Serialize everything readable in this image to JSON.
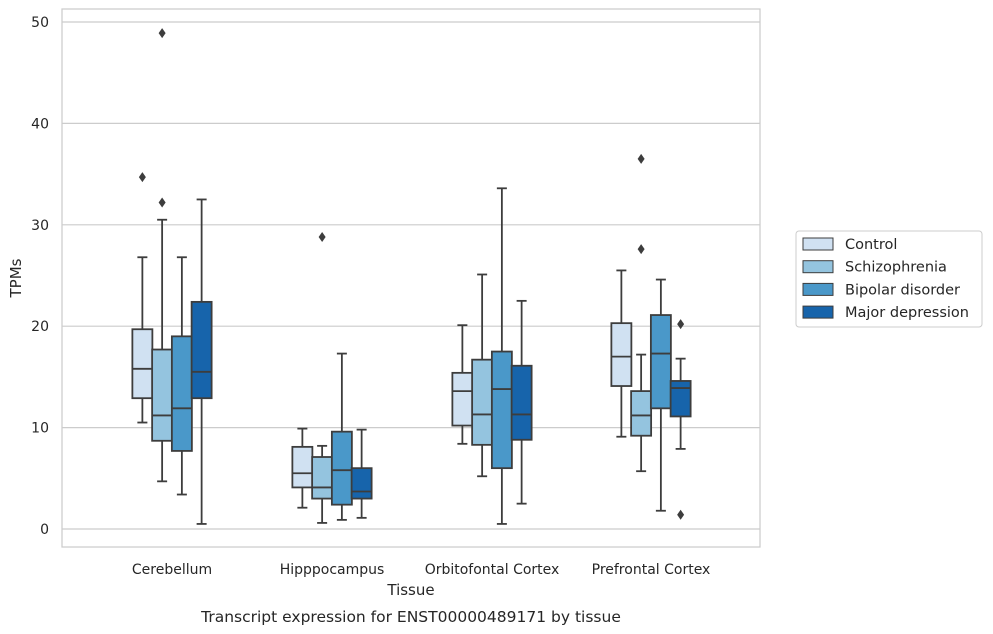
{
  "chart_data": {
    "type": "box",
    "title": "Transcript expression for ENST00000489171 by tissue",
    "xlabel": "Tissue",
    "ylabel": "TPMs",
    "ylim": [
      -1.8,
      51.5
    ],
    "yticks": [
      0,
      10,
      20,
      30,
      40,
      50
    ],
    "grid": "horizontal",
    "legend_position": "right",
    "categories": [
      "Cerebellum",
      "Hipppocampus",
      "Orbitofontal Cortex",
      "Prefrontal Cortex"
    ],
    "series": [
      {
        "name": "Control",
        "color": "#d0e1f2",
        "boxes": [
          {
            "whislo": 10.5,
            "q1": 12.9,
            "med": 15.8,
            "q3": 19.7,
            "whishi": 26.8,
            "fliers": [
              34.7
            ]
          },
          {
            "whislo": 2.1,
            "q1": 4.1,
            "med": 5.5,
            "q3": 8.1,
            "whishi": 9.9,
            "fliers": []
          },
          {
            "whislo": 8.4,
            "q1": 10.2,
            "med": 13.6,
            "q3": 15.4,
            "whishi": 20.1,
            "fliers": []
          },
          {
            "whislo": 9.1,
            "q1": 14.1,
            "med": 17.0,
            "q3": 20.3,
            "whishi": 25.5,
            "fliers": []
          }
        ]
      },
      {
        "name": "Schizophrenia",
        "color": "#94c4df",
        "boxes": [
          {
            "whislo": 4.7,
            "q1": 8.7,
            "med": 11.2,
            "q3": 17.7,
            "whishi": 30.5,
            "fliers": [
              32.2,
              48.9
            ]
          },
          {
            "whislo": 0.6,
            "q1": 3.0,
            "med": 4.1,
            "q3": 7.1,
            "whishi": 8.2,
            "fliers": [
              28.8
            ]
          },
          {
            "whislo": 5.2,
            "q1": 8.3,
            "med": 11.3,
            "q3": 16.7,
            "whishi": 25.1,
            "fliers": []
          },
          {
            "whislo": 5.7,
            "q1": 9.2,
            "med": 11.2,
            "q3": 13.6,
            "whishi": 17.2,
            "fliers": [
              27.6,
              36.5
            ]
          }
        ]
      },
      {
        "name": "Bipolar disorder",
        "color": "#4a98c9",
        "boxes": [
          {
            "whislo": 3.4,
            "q1": 7.7,
            "med": 11.9,
            "q3": 19.0,
            "whishi": 26.8,
            "fliers": []
          },
          {
            "whislo": 0.9,
            "q1": 2.4,
            "med": 5.8,
            "q3": 9.6,
            "whishi": 17.3,
            "fliers": []
          },
          {
            "whislo": 0.5,
            "q1": 6.0,
            "med": 13.8,
            "q3": 17.5,
            "whishi": 33.6,
            "fliers": []
          },
          {
            "whislo": 1.8,
            "q1": 11.9,
            "med": 17.3,
            "q3": 21.1,
            "whishi": 24.6,
            "fliers": []
          }
        ]
      },
      {
        "name": "Major depression",
        "color": "#1764ab",
        "boxes": [
          {
            "whislo": 0.5,
            "q1": 12.9,
            "med": 15.5,
            "q3": 22.4,
            "whishi": 32.5,
            "fliers": []
          },
          {
            "whislo": 1.1,
            "q1": 3.0,
            "med": 3.7,
            "q3": 6.0,
            "whishi": 9.8,
            "fliers": []
          },
          {
            "whislo": 2.5,
            "q1": 8.8,
            "med": 11.3,
            "q3": 16.1,
            "whishi": 22.5,
            "fliers": []
          },
          {
            "whislo": 7.9,
            "q1": 11.1,
            "med": 13.9,
            "q3": 14.6,
            "whishi": 16.8,
            "fliers": [
              20.2,
              1.4
            ]
          }
        ]
      }
    ]
  }
}
